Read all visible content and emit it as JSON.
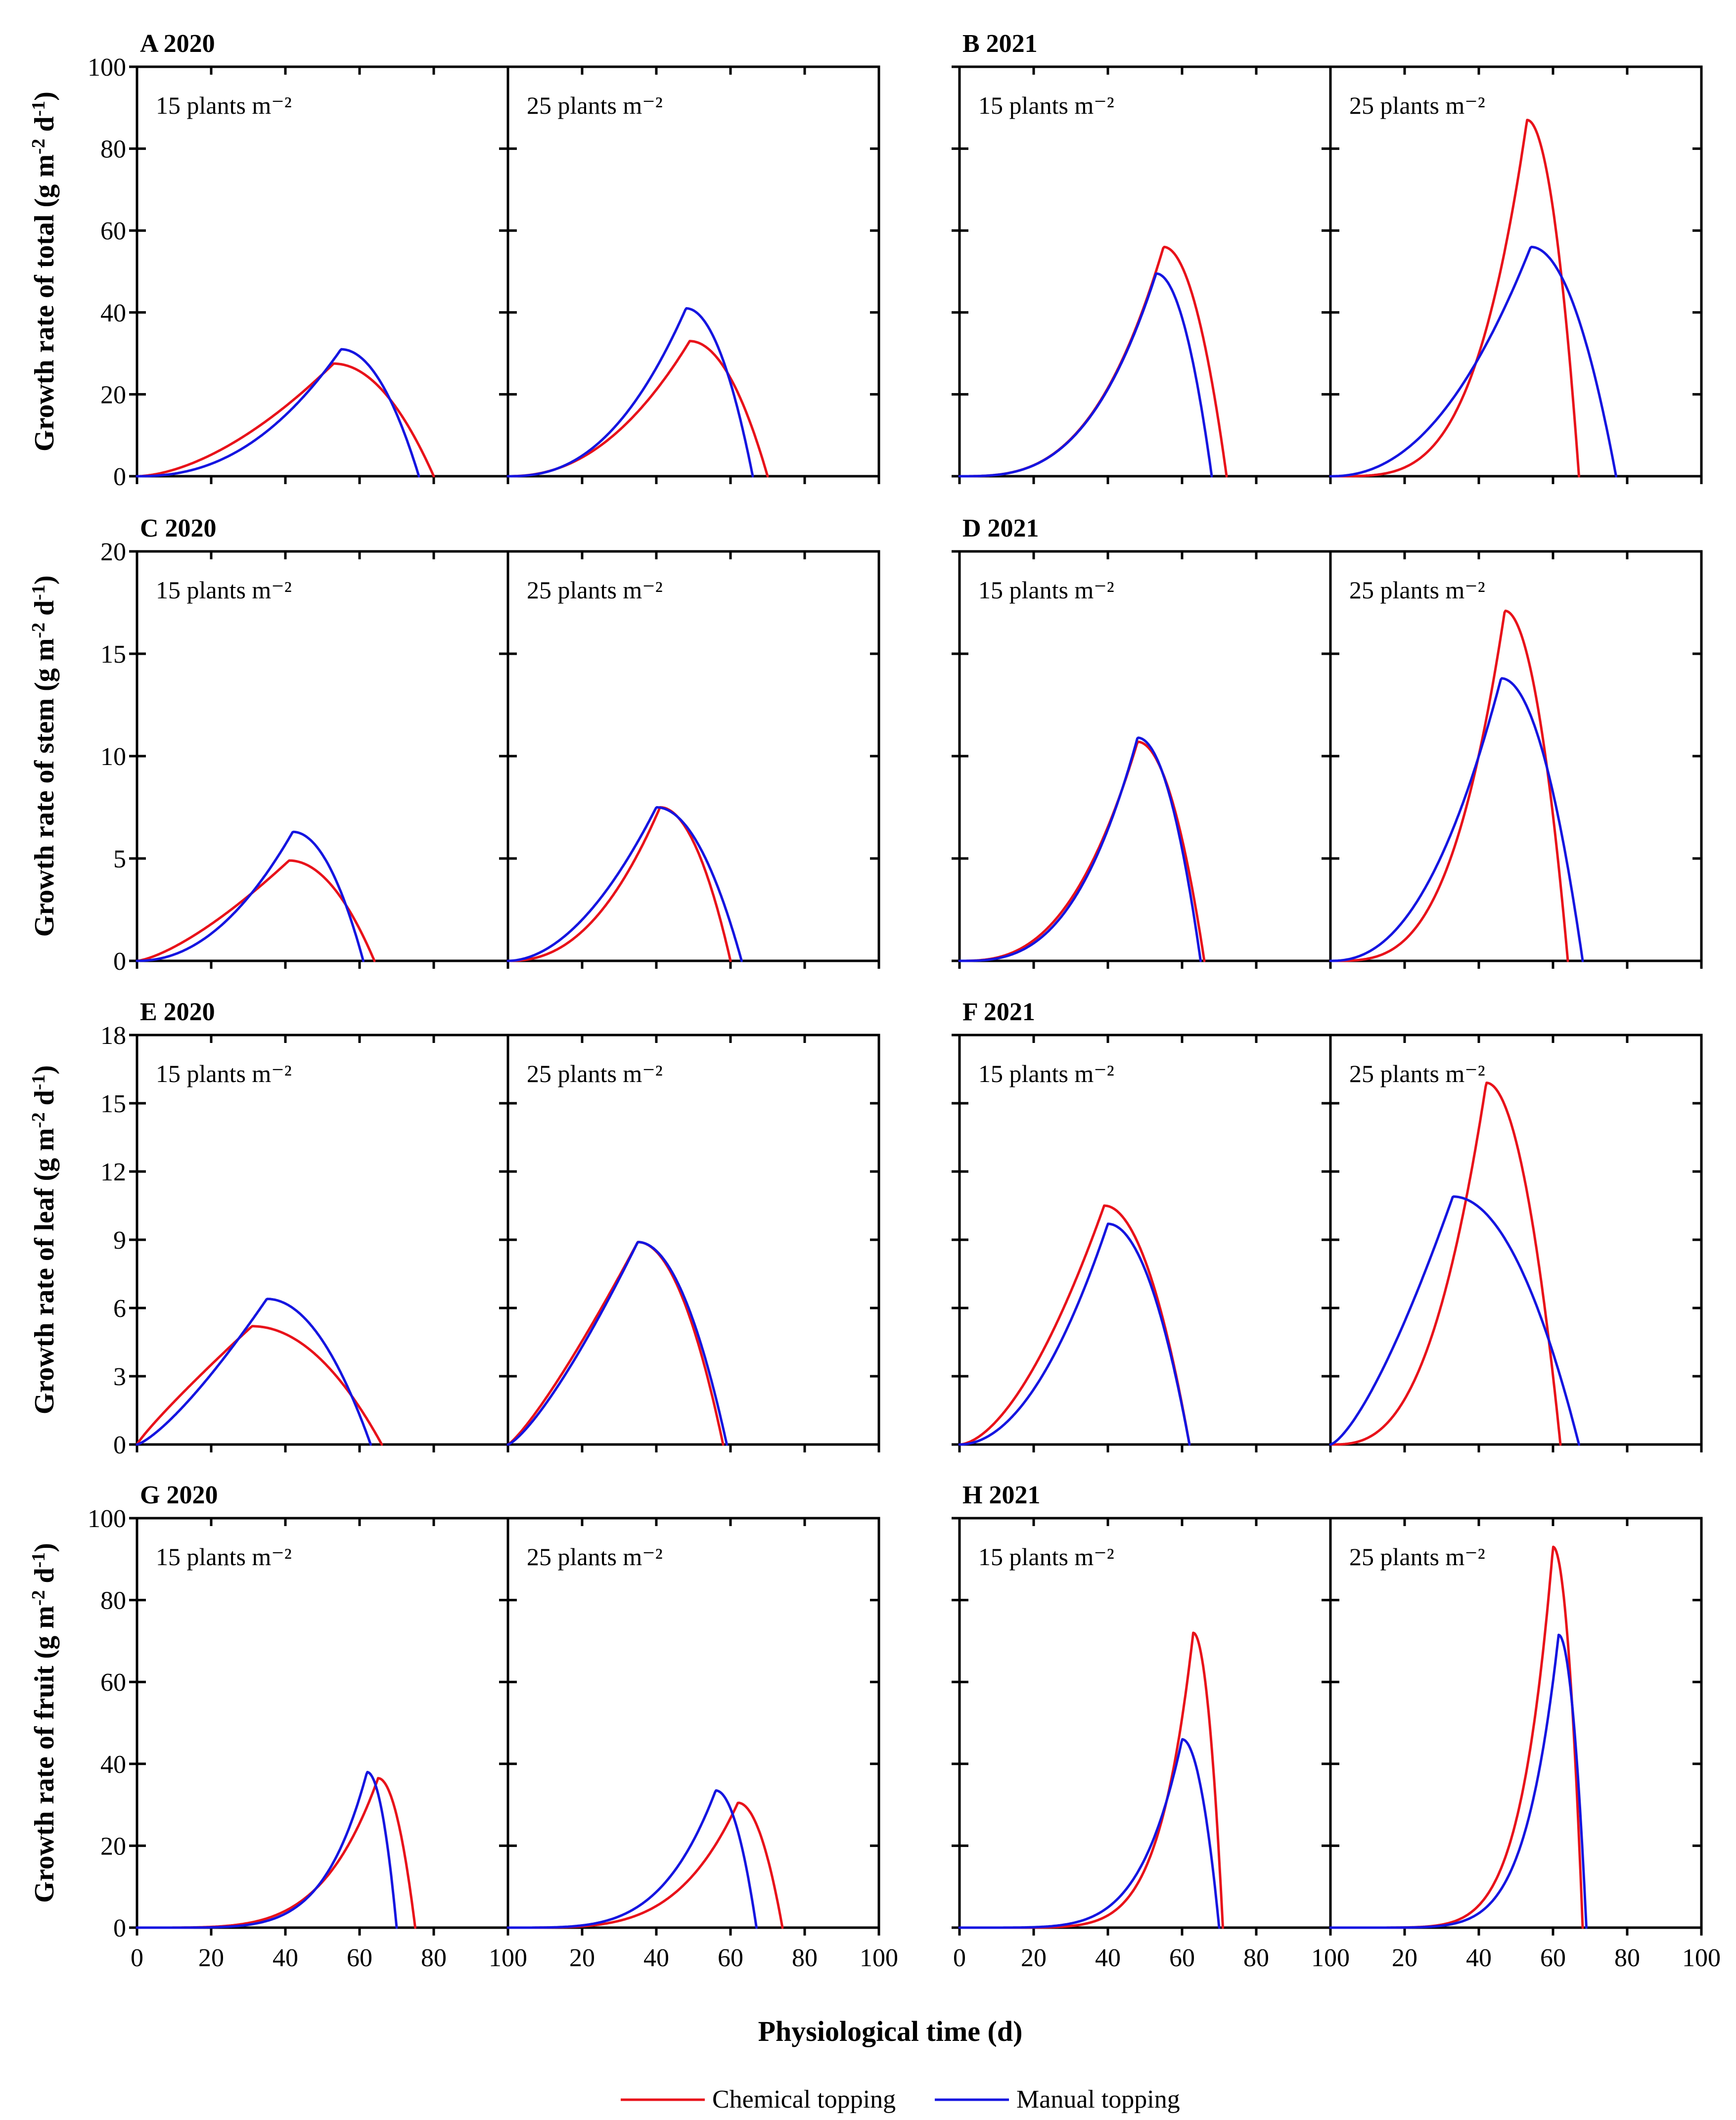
{
  "colors": {
    "chemical": "#e8121a",
    "manual": "#1515e0",
    "axis": "#000000"
  },
  "xlabel": "Physiological time (d)",
  "legend": [
    {
      "key": "chemical",
      "label": "Chemical topping"
    },
    {
      "key": "manual",
      "label": "Manual topping"
    }
  ],
  "chart_data": [
    {
      "id": "A",
      "title": "A 2020",
      "type": "line",
      "ylabel": "Growth rate of total (g m-2 d-1)",
      "ylim": [
        0,
        100
      ],
      "yticks": [
        0,
        20,
        40,
        60,
        80,
        100
      ],
      "xlim": [
        0,
        100
      ],
      "xticks": [
        0,
        20,
        40,
        60,
        80,
        100
      ],
      "subpanels": [
        {
          "label": "15 plants m⁻²",
          "series": [
            {
              "name": "Chemical topping",
              "type": "total",
              "peak_x": 53,
              "peak_y": 27.5,
              "end_x": 80,
              "exp": 1.7
            },
            {
              "name": "Manual topping",
              "type": "total",
              "peak_x": 55,
              "peak_y": 31,
              "end_x": 76,
              "exp": 2.3
            }
          ]
        },
        {
          "label": "25 plants m⁻²",
          "series": [
            {
              "name": "Chemical topping",
              "type": "total",
              "peak_x": 49,
              "peak_y": 33,
              "end_x": 70,
              "exp": 2.2
            },
            {
              "name": "Manual topping",
              "type": "total",
              "peak_x": 48,
              "peak_y": 41,
              "end_x": 66,
              "exp": 2.4
            }
          ]
        }
      ]
    },
    {
      "id": "B",
      "title": "B 2021",
      "type": "line",
      "ylabel": "",
      "ylim": [
        0,
        100
      ],
      "yticks": [
        0,
        20,
        40,
        60,
        80,
        100
      ],
      "xlim": [
        0,
        100
      ],
      "xticks": [
        0,
        20,
        40,
        60,
        80,
        100
      ],
      "subpanels": [
        {
          "label": "15 plants m⁻²",
          "series": [
            {
              "name": "Chemical topping",
              "type": "total",
              "peak_x": 55,
              "peak_y": 56,
              "end_x": 72,
              "exp": 3.0
            },
            {
              "name": "Manual topping",
              "type": "total",
              "peak_x": 53,
              "peak_y": 49.5,
              "end_x": 68,
              "exp": 3.0
            }
          ]
        },
        {
          "label": "25 plants m⁻²",
          "series": [
            {
              "name": "Chemical topping",
              "type": "total",
              "peak_x": 53,
              "peak_y": 87,
              "end_x": 67,
              "exp": 3.8
            },
            {
              "name": "Manual topping",
              "type": "total",
              "peak_x": 54,
              "peak_y": 56,
              "end_x": 77,
              "exp": 2.2
            }
          ]
        }
      ]
    },
    {
      "id": "C",
      "title": "C 2020",
      "type": "line",
      "ylabel": "Growth rate of stem (g m-2 d-1)",
      "ylim": [
        0,
        20
      ],
      "yticks": [
        0,
        5,
        10,
        15,
        20
      ],
      "xlim": [
        0,
        100
      ],
      "xticks": [
        0,
        20,
        40,
        60,
        80,
        100
      ],
      "subpanels": [
        {
          "label": "15 plants m⁻²",
          "series": [
            {
              "name": "Chemical topping",
              "type": "stem",
              "peak_x": 41,
              "peak_y": 4.9,
              "end_x": 64,
              "exp": 1.4
            },
            {
              "name": "Manual topping",
              "type": "stem",
              "peak_x": 42,
              "peak_y": 6.3,
              "end_x": 61,
              "exp": 2.1
            }
          ]
        },
        {
          "label": "25 plants m⁻²",
          "series": [
            {
              "name": "Chemical topping",
              "type": "stem",
              "peak_x": 41,
              "peak_y": 7.5,
              "end_x": 60,
              "exp": 2.3
            },
            {
              "name": "Manual topping",
              "type": "stem",
              "peak_x": 40,
              "peak_y": 7.5,
              "end_x": 63,
              "exp": 1.9
            }
          ]
        }
      ]
    },
    {
      "id": "D",
      "title": "D 2021",
      "type": "line",
      "ylabel": "",
      "ylim": [
        0,
        20
      ],
      "yticks": [
        0,
        5,
        10,
        15,
        20
      ],
      "xlim": [
        0,
        100
      ],
      "xticks": [
        0,
        20,
        40,
        60,
        80,
        100
      ],
      "subpanels": [
        {
          "label": "15 plants m⁻²",
          "series": [
            {
              "name": "Chemical topping",
              "type": "stem",
              "peak_x": 48,
              "peak_y": 10.7,
              "end_x": 66,
              "exp": 2.7
            },
            {
              "name": "Manual topping",
              "type": "stem",
              "peak_x": 48,
              "peak_y": 10.9,
              "end_x": 65,
              "exp": 2.9
            }
          ]
        },
        {
          "label": "25 plants m⁻²",
          "series": [
            {
              "name": "Chemical topping",
              "type": "stem",
              "peak_x": 47,
              "peak_y": 17.1,
              "end_x": 64,
              "exp": 3.3
            },
            {
              "name": "Manual topping",
              "type": "stem",
              "peak_x": 46,
              "peak_y": 13.8,
              "end_x": 68,
              "exp": 2.3
            }
          ]
        }
      ]
    },
    {
      "id": "E",
      "title": "E 2020",
      "type": "line",
      "ylabel": "Growth rate of leaf (g m-2 d-1)",
      "ylim": [
        0,
        18
      ],
      "yticks": [
        0,
        3,
        6,
        9,
        12,
        15,
        18
      ],
      "xlim": [
        0,
        100
      ],
      "xticks": [
        0,
        20,
        40,
        60,
        80,
        100
      ],
      "subpanels": [
        {
          "label": "15 plants m⁻²",
          "series": [
            {
              "name": "Chemical topping",
              "type": "leaf",
              "peak_x": 31,
              "peak_y": 5.2,
              "end_x": 66,
              "exp": 0.9
            },
            {
              "name": "Manual topping",
              "type": "leaf",
              "peak_x": 35,
              "peak_y": 6.4,
              "end_x": 63,
              "exp": 1.3
            }
          ]
        },
        {
          "label": "25 plants m⁻²",
          "series": [
            {
              "name": "Chemical topping",
              "type": "leaf",
              "peak_x": 35,
              "peak_y": 8.9,
              "end_x": 58,
              "exp": 1.2
            },
            {
              "name": "Manual topping",
              "type": "leaf",
              "peak_x": 35,
              "peak_y": 8.9,
              "end_x": 59,
              "exp": 1.3
            }
          ]
        }
      ]
    },
    {
      "id": "F",
      "title": "F 2021",
      "type": "line",
      "ylabel": "",
      "ylim": [
        0,
        18
      ],
      "yticks": [
        0,
        3,
        6,
        9,
        12,
        15,
        18
      ],
      "xlim": [
        0,
        100
      ],
      "xticks": [
        0,
        20,
        40,
        60,
        80,
        100
      ],
      "subpanels": [
        {
          "label": "15 plants m⁻²",
          "series": [
            {
              "name": "Chemical topping",
              "type": "leaf",
              "peak_x": 39,
              "peak_y": 10.5,
              "end_x": 62,
              "exp": 1.7
            },
            {
              "name": "Manual topping",
              "type": "leaf",
              "peak_x": 40,
              "peak_y": 9.7,
              "end_x": 62,
              "exp": 2.0
            }
          ]
        },
        {
          "label": "25 plants m⁻²",
          "series": [
            {
              "name": "Chemical topping",
              "type": "leaf",
              "peak_x": 42,
              "peak_y": 15.9,
              "end_x": 62,
              "exp": 2.8
            },
            {
              "name": "Manual topping",
              "type": "leaf",
              "peak_x": 33,
              "peak_y": 10.9,
              "end_x": 67,
              "exp": 1.4
            }
          ]
        }
      ]
    },
    {
      "id": "G",
      "title": "G 2020",
      "type": "line",
      "ylabel": "Growth rate of fruit (g m-2 d-1)",
      "ylim": [
        0,
        100
      ],
      "yticks": [
        0,
        20,
        40,
        60,
        80,
        100
      ],
      "xlim": [
        0,
        100
      ],
      "xticks": [
        0,
        20,
        40,
        60,
        80,
        100
      ],
      "subpanels": [
        {
          "label": "15 plants m⁻²",
          "series": [
            {
              "name": "Chemical topping",
              "type": "fruit",
              "peak_x": 65,
              "peak_y": 36.5,
              "end_x": 75,
              "exp": 4.5
            },
            {
              "name": "Manual topping",
              "type": "fruit",
              "peak_x": 62,
              "peak_y": 38,
              "end_x": 70,
              "exp": 5.5
            }
          ]
        },
        {
          "label": "25 plants m⁻²",
          "series": [
            {
              "name": "Chemical topping",
              "type": "fruit",
              "peak_x": 62,
              "peak_y": 30.5,
              "end_x": 74,
              "exp": 4.0
            },
            {
              "name": "Manual topping",
              "type": "fruit",
              "peak_x": 56,
              "peak_y": 33.5,
              "end_x": 67,
              "exp": 4.0
            }
          ]
        }
      ]
    },
    {
      "id": "H",
      "title": "H 2021",
      "type": "line",
      "ylabel": "",
      "ylim": [
        0,
        100
      ],
      "yticks": [
        0,
        20,
        40,
        60,
        80,
        100
      ],
      "xlim": [
        0,
        100
      ],
      "xticks": [
        0,
        20,
        40,
        60,
        80,
        100
      ],
      "subpanels": [
        {
          "label": "15 plants m⁻²",
          "series": [
            {
              "name": "Chemical topping",
              "type": "fruit",
              "peak_x": 63,
              "peak_y": 72,
              "end_x": 71,
              "exp": 7.0
            },
            {
              "name": "Manual topping",
              "type": "fruit",
              "peak_x": 60,
              "peak_y": 46,
              "end_x": 70,
              "exp": 5.5
            }
          ]
        },
        {
          "label": "25 plants m⁻²",
          "series": [
            {
              "name": "Chemical topping",
              "type": "fruit",
              "peak_x": 60,
              "peak_y": 93,
              "end_x": 68,
              "exp": 7.0
            },
            {
              "name": "Manual topping",
              "type": "fruit",
              "peak_x": 61.5,
              "peak_y": 71.5,
              "end_x": 69,
              "exp": 7.0
            }
          ]
        }
      ]
    }
  ]
}
